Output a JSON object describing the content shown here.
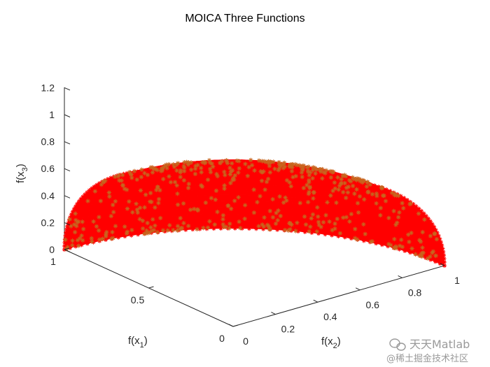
{
  "figure": {
    "title": "MOICA Three Functions",
    "background": "#ffffff"
  },
  "chart_data": {
    "type": "scatter",
    "projection": "3d",
    "title": "MOICA Three Functions",
    "xlabel": "f(x1)",
    "ylabel": "f(x2)",
    "zlabel": "f(x3)",
    "xlim": [
      0,
      1
    ],
    "ylim": [
      0,
      1
    ],
    "zlim": [
      0,
      1.2
    ],
    "x_ticks": [
      "0",
      "0.5",
      "1"
    ],
    "y_ticks": [
      "0",
      "0.2",
      "0.4",
      "0.6",
      "0.8",
      "1"
    ],
    "z_ticks": [
      "0",
      "0.2",
      "0.4",
      "0.6",
      "0.8",
      "1",
      "1.2"
    ],
    "grid": false,
    "marker": "*",
    "surface": "unit sphere octant, f1^2 + f2^2 + f3^2 = 1, f1,f2,f3 >= 0",
    "series": [
      {
        "color": "#ff0000",
        "marker": "*",
        "points": "dense Pareto front samples covering the octant"
      },
      {
        "color": "#c8641e",
        "marker": "*",
        "points": "sparser overlay samples concentrated at low f(x3)"
      }
    ]
  },
  "watermark": {
    "line1": "天天Matlab",
    "line2": "@稀土掘金技术社区"
  }
}
